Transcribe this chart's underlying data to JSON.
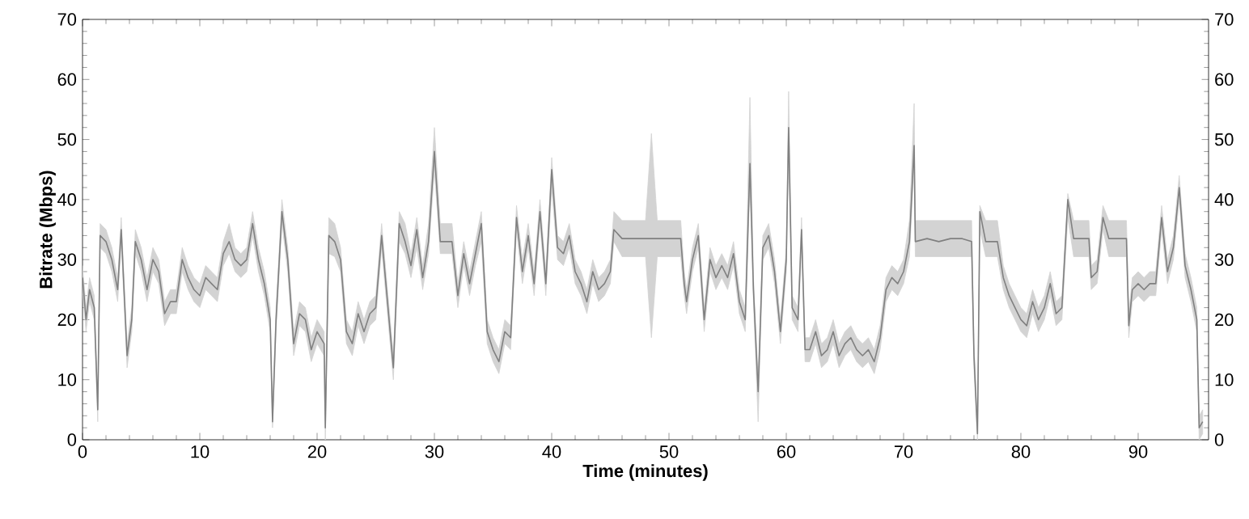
{
  "chart_data": {
    "type": "line",
    "xlabel": "Time (minutes)",
    "ylabel": "Bitrate (Mbps)",
    "xlim": [
      0,
      96
    ],
    "ylim": [
      0,
      70
    ],
    "xticks": [
      0,
      10,
      20,
      30,
      40,
      50,
      60,
      70,
      80,
      90
    ],
    "yticks": [
      0,
      10,
      20,
      30,
      40,
      50,
      60,
      70
    ],
    "y2lim": [
      0,
      70
    ],
    "y2ticks": [
      0,
      10,
      20,
      30,
      40,
      50,
      60,
      70
    ],
    "grid": false,
    "marker": "none",
    "line_style": "solid",
    "series": [
      {
        "color": "#808080",
        "x": [
          0,
          0.3,
          0.6,
          1,
          1.3,
          1.5,
          2,
          2.5,
          3,
          3.3,
          3.8,
          4.2,
          4.5,
          5,
          5.5,
          6,
          6.5,
          7,
          7.5,
          8,
          8.5,
          9,
          9.5,
          10,
          10.5,
          11,
          11.5,
          12,
          12.5,
          13,
          13.5,
          14,
          14.5,
          15,
          15.5,
          16,
          16.2,
          16.5,
          17,
          17.5,
          18,
          18.5,
          19,
          19.5,
          20,
          20.6,
          20.7,
          21,
          21.5,
          22,
          22.5,
          23,
          23.5,
          24,
          24.5,
          25,
          25.5,
          26,
          26.5,
          27,
          27.5,
          28,
          28.5,
          29,
          29.5,
          30,
          30.5,
          31,
          31.5,
          32,
          32.5,
          33,
          33.5,
          34,
          34.5,
          35,
          35.5,
          36,
          36.5,
          37,
          37.5,
          38,
          38.5,
          39,
          39.5,
          40,
          40.5,
          41,
          41.5,
          42,
          42.5,
          43,
          43.5,
          44,
          44.5,
          45,
          45.3,
          46,
          47,
          48,
          48.5,
          49,
          50,
          51,
          51.3,
          51.5,
          52,
          52.5,
          53,
          53.5,
          54,
          54.5,
          55,
          55.5,
          56,
          56.5,
          56.9,
          57.2,
          57.6,
          58,
          58.5,
          59,
          59.5,
          60,
          60.2,
          60.5,
          61,
          61.3,
          61.6,
          62,
          62.5,
          63,
          63.5,
          64,
          64.5,
          65,
          65.5,
          66,
          66.5,
          67,
          67.5,
          68,
          68.5,
          69,
          69.5,
          70,
          70.5,
          70.9,
          71,
          72,
          73,
          74,
          75,
          75.8,
          76,
          76.3,
          76.5,
          77,
          77.5,
          78,
          78.5,
          79,
          79.5,
          80,
          80.5,
          81,
          81.5,
          82,
          82.5,
          83,
          83.5,
          84,
          84.5,
          85,
          85.8,
          86,
          86.5,
          87,
          87.5,
          88,
          89,
          89.2,
          89.5,
          90,
          90.5,
          91,
          91.5,
          92,
          92.5,
          93,
          93.5,
          94,
          94.5,
          95,
          95.2,
          95.5
        ],
        "values": [
          27,
          20,
          25,
          22,
          5,
          34,
          33,
          30,
          25,
          35,
          14,
          20,
          33,
          30,
          25,
          30,
          28,
          21,
          23,
          23,
          30,
          27,
          25,
          24,
          27,
          26,
          25,
          31,
          33,
          30,
          29,
          30,
          36,
          30,
          26,
          20,
          3,
          20,
          38,
          30,
          16,
          21,
          20,
          15,
          18,
          16,
          2,
          34,
          33,
          30,
          18,
          16,
          21,
          18,
          21,
          22,
          34,
          23,
          12,
          36,
          33,
          29,
          35,
          27,
          33,
          48,
          33,
          33,
          33,
          24,
          31,
          26,
          31,
          36,
          18,
          15,
          13,
          18,
          17,
          37,
          28,
          34,
          26,
          38,
          26,
          45,
          32,
          31,
          34,
          28,
          26,
          23,
          28,
          25,
          26,
          28,
          35,
          33.5,
          33.5,
          33.5,
          33.5,
          33.5,
          33.5,
          33.5,
          26,
          23,
          30,
          34,
          20,
          30,
          27,
          29,
          27,
          31,
          23,
          20,
          46,
          25,
          8,
          32,
          34,
          28,
          18,
          30,
          52,
          22,
          20,
          35,
          15,
          15,
          18,
          14,
          15,
          18,
          14,
          16,
          17,
          15,
          14,
          15,
          13,
          17,
          25,
          27,
          26,
          28,
          33,
          49,
          33,
          33.5,
          33,
          33.5,
          33.5,
          33,
          14,
          1,
          38,
          33,
          33,
          33,
          27,
          24,
          22,
          20,
          19,
          23,
          20,
          22,
          26,
          21,
          22,
          40,
          33.5,
          33.5,
          33.5,
          27,
          28,
          37,
          33.5,
          33.5,
          33.5,
          19,
          25,
          26,
          25,
          26,
          26,
          37,
          28,
          32,
          42,
          29,
          25,
          20,
          2,
          3
        ],
        "lower": [
          25,
          18,
          23,
          20,
          3,
          32,
          31,
          28,
          23,
          33,
          12,
          18,
          31,
          28,
          23,
          28,
          26,
          19,
          21,
          21,
          28,
          25,
          23,
          22,
          25,
          24,
          23,
          29,
          31,
          28,
          27,
          28,
          34,
          28,
          24,
          18,
          2,
          18,
          36,
          28,
          14,
          19,
          18,
          13,
          16,
          14,
          0,
          31,
          30.5,
          28,
          16,
          14,
          19,
          16,
          19,
          20,
          32,
          21,
          10,
          33,
          31,
          27,
          32,
          25,
          31,
          45,
          31,
          31,
          31,
          22,
          29,
          24,
          29,
          33,
          16,
          13,
          11,
          16,
          15,
          35,
          26,
          32,
          24,
          36,
          24,
          42,
          30,
          29,
          32,
          26,
          24,
          21,
          26,
          23,
          24,
          26,
          33,
          30.5,
          30.5,
          30.5,
          17,
          30.5,
          30.5,
          30.5,
          24,
          21,
          28,
          32,
          18,
          28,
          25,
          27,
          25,
          29,
          21,
          18,
          43,
          23,
          3,
          30,
          32,
          26,
          16,
          28,
          50,
          20,
          18,
          33,
          13,
          13,
          16,
          12,
          13,
          16,
          12,
          14,
          15,
          13,
          12,
          13,
          11,
          15,
          23,
          25,
          24,
          26,
          30.5,
          46,
          30.5,
          30.5,
          30.5,
          30.5,
          30.5,
          30.5,
          12,
          0,
          35,
          30.5,
          30.5,
          30.5,
          25,
          22,
          20,
          18,
          17,
          21,
          18,
          20,
          24,
          19,
          20,
          37,
          30.5,
          30.5,
          30.5,
          25,
          26,
          35,
          30.5,
          30.5,
          30.5,
          17,
          23,
          24,
          23,
          24,
          24,
          35,
          26,
          30,
          40,
          27,
          23,
          18,
          0,
          1
        ],
        "upper": [
          29,
          22,
          27,
          24,
          7,
          36,
          35,
          32,
          27,
          37,
          16,
          22,
          35,
          32,
          27,
          32,
          30,
          23,
          25,
          25,
          32,
          29,
          27,
          26,
          29,
          28,
          27,
          33,
          36,
          32,
          31,
          32,
          38,
          32,
          28,
          22,
          5,
          22,
          40,
          32,
          18,
          23,
          22,
          17,
          20,
          18,
          4,
          37,
          36,
          32,
          20,
          18,
          23,
          20,
          23,
          24,
          36,
          25,
          14,
          38,
          36,
          31,
          37,
          29,
          36,
          52,
          36,
          36,
          36,
          26,
          33,
          28,
          33,
          38,
          20,
          17,
          15,
          20,
          19,
          39,
          30,
          36,
          28,
          40,
          28,
          47,
          34,
          33,
          36,
          30,
          28,
          25,
          30,
          27,
          28,
          30,
          38,
          36.5,
          36.5,
          36.5,
          51,
          36.5,
          36.5,
          36.5,
          28,
          25,
          32,
          36,
          22,
          32,
          29,
          31,
          29,
          33,
          25,
          22,
          57,
          27,
          10,
          34,
          36,
          30,
          20,
          32,
          58,
          24,
          22,
          37,
          17,
          17,
          20,
          16,
          17,
          20,
          16,
          18,
          19,
          17,
          16,
          17,
          15,
          19,
          27,
          29,
          28,
          30,
          36.5,
          56,
          36.5,
          36.5,
          36.5,
          36.5,
          36.5,
          36.5,
          16,
          3,
          39,
          36.5,
          36.5,
          36.5,
          29,
          26,
          24,
          22,
          21,
          25,
          22,
          24,
          28,
          23,
          24,
          41,
          36.5,
          36.5,
          36.5,
          29,
          30,
          39,
          36.5,
          36.5,
          36.5,
          21,
          27,
          28,
          27,
          28,
          28,
          39,
          30,
          34,
          44,
          31,
          27,
          22,
          4,
          5
        ]
      }
    ]
  }
}
